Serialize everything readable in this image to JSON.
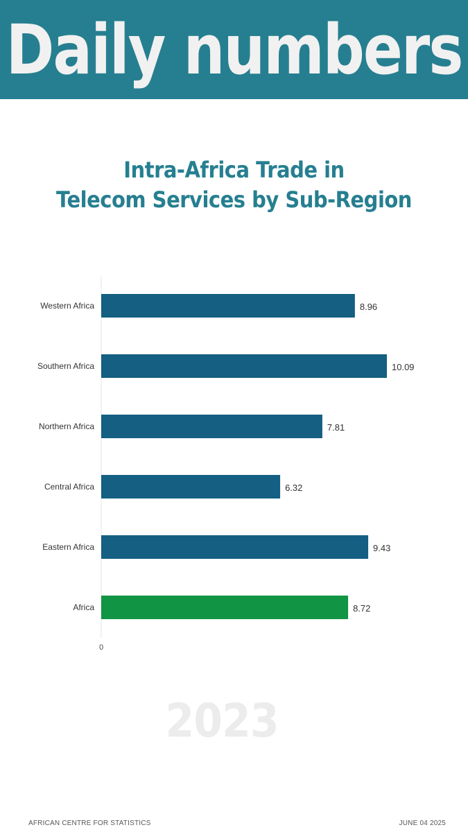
{
  "header": {
    "title": "Daily numbers"
  },
  "chart_data": {
    "type": "bar",
    "orientation": "horizontal",
    "title": "Intra-Africa Trade in Telecom Services by Sub-Region",
    "title_lines": [
      "Intra-Africa Trade in",
      "Telecom Services by Sub-Region"
    ],
    "categories": [
      "Western Africa",
      "Southern Africa",
      "Northern Africa",
      "Central Africa",
      "Eastern Africa",
      "Africa"
    ],
    "values": [
      8.96,
      10.09,
      7.81,
      6.32,
      9.43,
      8.72
    ],
    "value_labels": [
      "8.96",
      "10.09",
      "7.81",
      "6.32",
      "9.43",
      "8.72"
    ],
    "bar_colors": [
      "#145f82",
      "#145f82",
      "#145f82",
      "#145f82",
      "#145f82",
      "#119444"
    ],
    "xlim": [
      0,
      10.8
    ],
    "x_tick_labels": [
      "0"
    ],
    "grid": false,
    "xlabel": "",
    "ylabel": ""
  },
  "year_label": "2023",
  "footer": {
    "source": "AFRICAN CENTRE FOR STATISTICS",
    "date": "JUNE 04 2025"
  }
}
